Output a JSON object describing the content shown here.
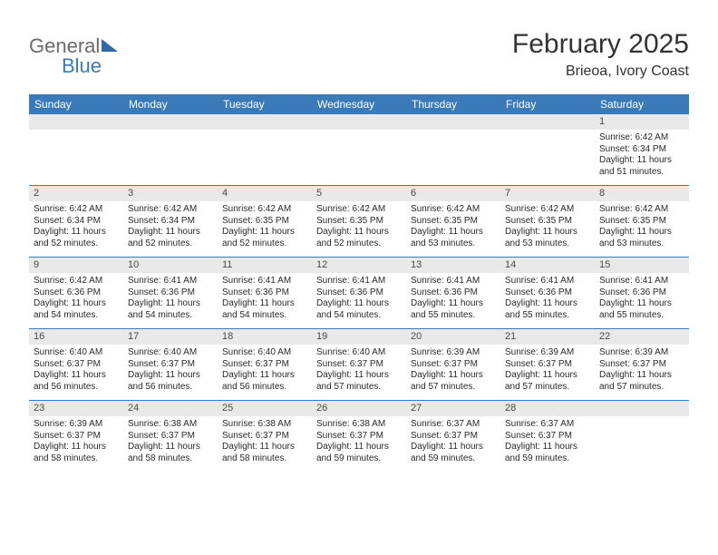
{
  "logo": {
    "word1": "General",
    "word2": "Blue"
  },
  "title": "February 2025",
  "location": "Brieoa, Ivory Coast",
  "colors": {
    "header_bg": "#3a7ab8",
    "header_text": "#ffffff",
    "daynum_bg": "#e9e9e9",
    "week_border": "#3a7ab8",
    "page_bg": "#ffffff"
  },
  "day_headers": [
    "Sunday",
    "Monday",
    "Tuesday",
    "Wednesday",
    "Thursday",
    "Friday",
    "Saturday"
  ],
  "weeks": [
    [
      {
        "n": "",
        "sr": "",
        "ss": "",
        "dl": ""
      },
      {
        "n": "",
        "sr": "",
        "ss": "",
        "dl": ""
      },
      {
        "n": "",
        "sr": "",
        "ss": "",
        "dl": ""
      },
      {
        "n": "",
        "sr": "",
        "ss": "",
        "dl": ""
      },
      {
        "n": "",
        "sr": "",
        "ss": "",
        "dl": ""
      },
      {
        "n": "",
        "sr": "",
        "ss": "",
        "dl": ""
      },
      {
        "n": "1",
        "sr": "Sunrise: 6:42 AM",
        "ss": "Sunset: 6:34 PM",
        "dl": "Daylight: 11 hours and 51 minutes."
      }
    ],
    [
      {
        "n": "2",
        "sr": "Sunrise: 6:42 AM",
        "ss": "Sunset: 6:34 PM",
        "dl": "Daylight: 11 hours and 52 minutes."
      },
      {
        "n": "3",
        "sr": "Sunrise: 6:42 AM",
        "ss": "Sunset: 6:34 PM",
        "dl": "Daylight: 11 hours and 52 minutes."
      },
      {
        "n": "4",
        "sr": "Sunrise: 6:42 AM",
        "ss": "Sunset: 6:35 PM",
        "dl": "Daylight: 11 hours and 52 minutes."
      },
      {
        "n": "5",
        "sr": "Sunrise: 6:42 AM",
        "ss": "Sunset: 6:35 PM",
        "dl": "Daylight: 11 hours and 52 minutes."
      },
      {
        "n": "6",
        "sr": "Sunrise: 6:42 AM",
        "ss": "Sunset: 6:35 PM",
        "dl": "Daylight: 11 hours and 53 minutes."
      },
      {
        "n": "7",
        "sr": "Sunrise: 6:42 AM",
        "ss": "Sunset: 6:35 PM",
        "dl": "Daylight: 11 hours and 53 minutes."
      },
      {
        "n": "8",
        "sr": "Sunrise: 6:42 AM",
        "ss": "Sunset: 6:35 PM",
        "dl": "Daylight: 11 hours and 53 minutes."
      }
    ],
    [
      {
        "n": "9",
        "sr": "Sunrise: 6:42 AM",
        "ss": "Sunset: 6:36 PM",
        "dl": "Daylight: 11 hours and 54 minutes."
      },
      {
        "n": "10",
        "sr": "Sunrise: 6:41 AM",
        "ss": "Sunset: 6:36 PM",
        "dl": "Daylight: 11 hours and 54 minutes."
      },
      {
        "n": "11",
        "sr": "Sunrise: 6:41 AM",
        "ss": "Sunset: 6:36 PM",
        "dl": "Daylight: 11 hours and 54 minutes."
      },
      {
        "n": "12",
        "sr": "Sunrise: 6:41 AM",
        "ss": "Sunset: 6:36 PM",
        "dl": "Daylight: 11 hours and 54 minutes."
      },
      {
        "n": "13",
        "sr": "Sunrise: 6:41 AM",
        "ss": "Sunset: 6:36 PM",
        "dl": "Daylight: 11 hours and 55 minutes."
      },
      {
        "n": "14",
        "sr": "Sunrise: 6:41 AM",
        "ss": "Sunset: 6:36 PM",
        "dl": "Daylight: 11 hours and 55 minutes."
      },
      {
        "n": "15",
        "sr": "Sunrise: 6:41 AM",
        "ss": "Sunset: 6:36 PM",
        "dl": "Daylight: 11 hours and 55 minutes."
      }
    ],
    [
      {
        "n": "16",
        "sr": "Sunrise: 6:40 AM",
        "ss": "Sunset: 6:37 PM",
        "dl": "Daylight: 11 hours and 56 minutes."
      },
      {
        "n": "17",
        "sr": "Sunrise: 6:40 AM",
        "ss": "Sunset: 6:37 PM",
        "dl": "Daylight: 11 hours and 56 minutes."
      },
      {
        "n": "18",
        "sr": "Sunrise: 6:40 AM",
        "ss": "Sunset: 6:37 PM",
        "dl": "Daylight: 11 hours and 56 minutes."
      },
      {
        "n": "19",
        "sr": "Sunrise: 6:40 AM",
        "ss": "Sunset: 6:37 PM",
        "dl": "Daylight: 11 hours and 57 minutes."
      },
      {
        "n": "20",
        "sr": "Sunrise: 6:39 AM",
        "ss": "Sunset: 6:37 PM",
        "dl": "Daylight: 11 hours and 57 minutes."
      },
      {
        "n": "21",
        "sr": "Sunrise: 6:39 AM",
        "ss": "Sunset: 6:37 PM",
        "dl": "Daylight: 11 hours and 57 minutes."
      },
      {
        "n": "22",
        "sr": "Sunrise: 6:39 AM",
        "ss": "Sunset: 6:37 PM",
        "dl": "Daylight: 11 hours and 57 minutes."
      }
    ],
    [
      {
        "n": "23",
        "sr": "Sunrise: 6:39 AM",
        "ss": "Sunset: 6:37 PM",
        "dl": "Daylight: 11 hours and 58 minutes."
      },
      {
        "n": "24",
        "sr": "Sunrise: 6:38 AM",
        "ss": "Sunset: 6:37 PM",
        "dl": "Daylight: 11 hours and 58 minutes."
      },
      {
        "n": "25",
        "sr": "Sunrise: 6:38 AM",
        "ss": "Sunset: 6:37 PM",
        "dl": "Daylight: 11 hours and 58 minutes."
      },
      {
        "n": "26",
        "sr": "Sunrise: 6:38 AM",
        "ss": "Sunset: 6:37 PM",
        "dl": "Daylight: 11 hours and 59 minutes."
      },
      {
        "n": "27",
        "sr": "Sunrise: 6:37 AM",
        "ss": "Sunset: 6:37 PM",
        "dl": "Daylight: 11 hours and 59 minutes."
      },
      {
        "n": "28",
        "sr": "Sunrise: 6:37 AM",
        "ss": "Sunset: 6:37 PM",
        "dl": "Daylight: 11 hours and 59 minutes."
      },
      {
        "n": "",
        "sr": "",
        "ss": "",
        "dl": ""
      }
    ]
  ]
}
